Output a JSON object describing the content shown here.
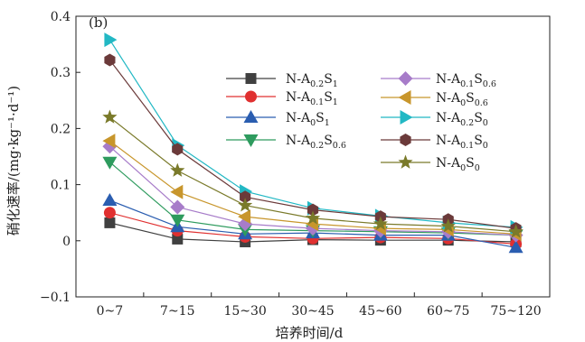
{
  "chart_data": {
    "type": "line",
    "panel_label": "(b)",
    "xlabel": "培养时间/d",
    "ylabel": "硝化速率/(mg·kg⁻¹·d⁻¹)",
    "categories": [
      "0~7",
      "7~15",
      "15~30",
      "30~45",
      "45~60",
      "60~75",
      "75~120"
    ],
    "ylim": [
      -0.1,
      0.4
    ],
    "yticks": [
      -0.1,
      0,
      0.1,
      0.2,
      0.3,
      0.4
    ],
    "ytick_labels": [
      "−0.1",
      "0",
      "0.1",
      "0.2",
      "0.3",
      "0.4"
    ],
    "grid": false,
    "legend_position": "upper-right",
    "series": [
      {
        "name": "N-A0.2S1",
        "name_parts": [
          [
            "N-A",
            ""
          ],
          [
            "0.2",
            "sub"
          ],
          [
            "S",
            ""
          ],
          [
            "1",
            "sub"
          ]
        ],
        "marker": "square",
        "color": "#404040",
        "values": [
          0.032,
          0.003,
          -0.002,
          0.002,
          0.001,
          0.001,
          -0.002
        ]
      },
      {
        "name": "N-A0.1S1",
        "name_parts": [
          [
            "N-A",
            ""
          ],
          [
            "0.1",
            "sub"
          ],
          [
            "S",
            ""
          ],
          [
            "1",
            "sub"
          ]
        ],
        "marker": "circle",
        "color": "#e03030",
        "values": [
          0.05,
          0.018,
          0.007,
          0.004,
          0.006,
          0.004,
          -0.006
        ]
      },
      {
        "name": "N-A0S1",
        "name_parts": [
          [
            "N-A",
            ""
          ],
          [
            "0",
            "sub"
          ],
          [
            "S",
            ""
          ],
          [
            "1",
            "sub"
          ]
        ],
        "marker": "triangle-up",
        "color": "#2a5db0",
        "values": [
          0.072,
          0.025,
          0.012,
          0.014,
          0.01,
          0.01,
          -0.012
        ]
      },
      {
        "name": "N-A0.2S0.6",
        "name_parts": [
          [
            "N-A",
            ""
          ],
          [
            "0.2",
            "sub"
          ],
          [
            "S",
            ""
          ],
          [
            "0.6",
            "sub"
          ]
        ],
        "marker": "triangle-down",
        "color": "#2e9b5e",
        "values": [
          0.14,
          0.037,
          0.02,
          0.018,
          0.016,
          0.014,
          0.01
        ]
      },
      {
        "name": "N-A0.1S0.6",
        "name_parts": [
          [
            "N-A",
            ""
          ],
          [
            "0.1",
            "sub"
          ],
          [
            "S",
            ""
          ],
          [
            "0.6",
            "sub"
          ]
        ],
        "marker": "diamond",
        "color": "#a77cc9",
        "values": [
          0.168,
          0.06,
          0.03,
          0.022,
          0.018,
          0.016,
          0.01
        ]
      },
      {
        "name": "N-A0S0.6",
        "name_parts": [
          [
            "N-A",
            ""
          ],
          [
            "0",
            "sub"
          ],
          [
            "S",
            ""
          ],
          [
            "0.6",
            "sub"
          ]
        ],
        "marker": "triangle-left",
        "color": "#c8962c",
        "values": [
          0.178,
          0.087,
          0.043,
          0.03,
          0.022,
          0.02,
          0.012
        ]
      },
      {
        "name": "N-A0.2S0",
        "name_parts": [
          [
            "N-A",
            ""
          ],
          [
            "0.2",
            "sub"
          ],
          [
            "S",
            ""
          ],
          [
            "0",
            "sub"
          ]
        ],
        "marker": "triangle-right",
        "color": "#22b8c4",
        "values": [
          0.358,
          0.17,
          0.088,
          0.058,
          0.044,
          0.032,
          0.024
        ]
      },
      {
        "name": "N-A0.1S0",
        "name_parts": [
          [
            "N-A",
            ""
          ],
          [
            "0.1",
            "sub"
          ],
          [
            "S",
            ""
          ],
          [
            "0",
            "sub"
          ]
        ],
        "marker": "hexagon",
        "color": "#6b3a3a",
        "values": [
          0.322,
          0.163,
          0.078,
          0.055,
          0.043,
          0.038,
          0.022
        ]
      },
      {
        "name": "N-A0S0",
        "name_parts": [
          [
            "N-A",
            ""
          ],
          [
            "0",
            "sub"
          ],
          [
            "S",
            ""
          ],
          [
            "0",
            "sub"
          ]
        ],
        "marker": "star",
        "color": "#7a7a2a",
        "values": [
          0.22,
          0.125,
          0.063,
          0.04,
          0.03,
          0.026,
          0.016
        ]
      }
    ]
  }
}
